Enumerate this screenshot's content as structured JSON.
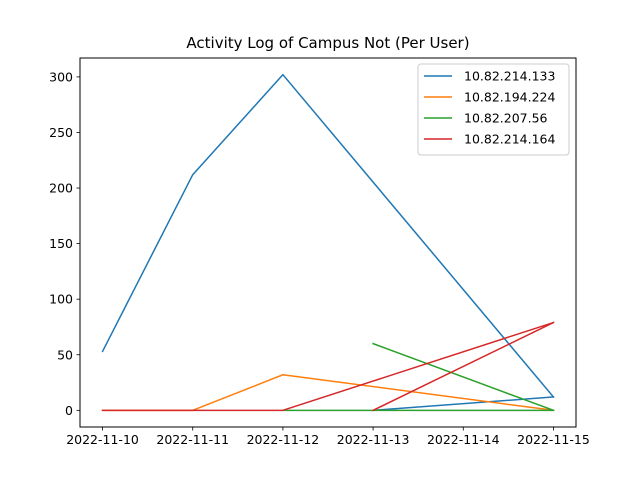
{
  "chart_data": {
    "type": "line",
    "title": "Activity Log of Campus Not (Per User)",
    "xlabel": "",
    "ylabel": "",
    "x_ticks": [
      "2022-11-10",
      "2022-11-11",
      "2022-11-12",
      "2022-11-13",
      "2022-11-14",
      "2022-11-15"
    ],
    "xlim": [
      "2022-11-09 18:00",
      "2022-11-15 06:00"
    ],
    "ylim": [
      -15,
      317
    ],
    "y_ticks": [
      0,
      50,
      100,
      150,
      200,
      250,
      300
    ],
    "grid": false,
    "legend_placement": "top-right",
    "series": [
      {
        "name": "10.82.214.133",
        "color": "#1f77b4",
        "segments": [
          [
            [
              "2022-11-10",
              53
            ],
            [
              "2022-11-11",
              212
            ],
            [
              "2022-11-12",
              302
            ],
            [
              "2022-11-15",
              12
            ]
          ],
          [
            [
              "2022-11-13",
              0
            ],
            [
              "2022-11-15",
              12
            ]
          ]
        ]
      },
      {
        "name": "10.82.194.224",
        "color": "#ff7f0e",
        "segments": [
          [
            [
              "2022-11-10",
              0
            ],
            [
              "2022-11-11",
              0
            ],
            [
              "2022-11-12",
              32
            ],
            [
              "2022-11-15",
              0
            ]
          ]
        ]
      },
      {
        "name": "10.82.207.56",
        "color": "#2ca02c",
        "segments": [
          [
            [
              "2022-11-12",
              0
            ],
            [
              "2022-11-15",
              0
            ]
          ],
          [
            [
              "2022-11-13",
              60
            ],
            [
              "2022-11-15",
              0
            ]
          ]
        ]
      },
      {
        "name": "10.82.214.164",
        "color": "#d62728",
        "segments": [
          [
            [
              "2022-11-10",
              0
            ],
            [
              "2022-11-12",
              0
            ],
            [
              "2022-11-15",
              79
            ]
          ],
          [
            [
              "2022-11-13",
              0
            ],
            [
              "2022-11-15",
              79
            ]
          ]
        ]
      }
    ]
  }
}
